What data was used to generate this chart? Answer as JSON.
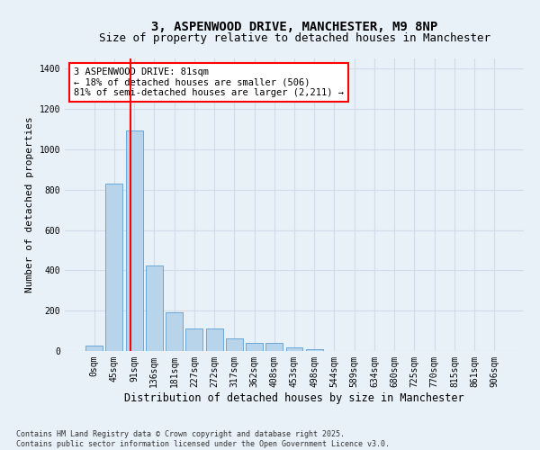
{
  "title_line1": "3, ASPENWOOD DRIVE, MANCHESTER, M9 8NP",
  "title_line2": "Size of property relative to detached houses in Manchester",
  "xlabel": "Distribution of detached houses by size in Manchester",
  "ylabel": "Number of detached properties",
  "bar_labels": [
    "0sqm",
    "45sqm",
    "91sqm",
    "136sqm",
    "181sqm",
    "227sqm",
    "272sqm",
    "317sqm",
    "362sqm",
    "408sqm",
    "453sqm",
    "498sqm",
    "544sqm",
    "589sqm",
    "634sqm",
    "680sqm",
    "725sqm",
    "770sqm",
    "815sqm",
    "861sqm",
    "906sqm"
  ],
  "bar_values": [
    28,
    830,
    1095,
    425,
    190,
    110,
    110,
    62,
    42,
    40,
    20,
    10,
    0,
    0,
    0,
    0,
    0,
    0,
    0,
    0,
    0
  ],
  "bar_color": "#b8d4ea",
  "bar_edge_color": "#5a9fd4",
  "vline_color": "red",
  "vline_x_index": 1.82,
  "annotation_text": "3 ASPENWOOD DRIVE: 81sqm\n← 18% of detached houses are smaller (506)\n81% of semi-detached houses are larger (2,211) →",
  "annotation_box_color": "white",
  "annotation_box_edge_color": "red",
  "ylim": [
    0,
    1450
  ],
  "yticks": [
    0,
    200,
    400,
    600,
    800,
    1000,
    1200,
    1400
  ],
  "background_color": "#e8f0f8",
  "grid_color": "#d0dce8",
  "footnote": "Contains HM Land Registry data © Crown copyright and database right 2025.\nContains public sector information licensed under the Open Government Licence v3.0.",
  "title_fontsize": 10,
  "subtitle_fontsize": 9,
  "xlabel_fontsize": 8.5,
  "ylabel_fontsize": 8,
  "tick_fontsize": 7,
  "annot_fontsize": 7.5,
  "footnote_fontsize": 6
}
